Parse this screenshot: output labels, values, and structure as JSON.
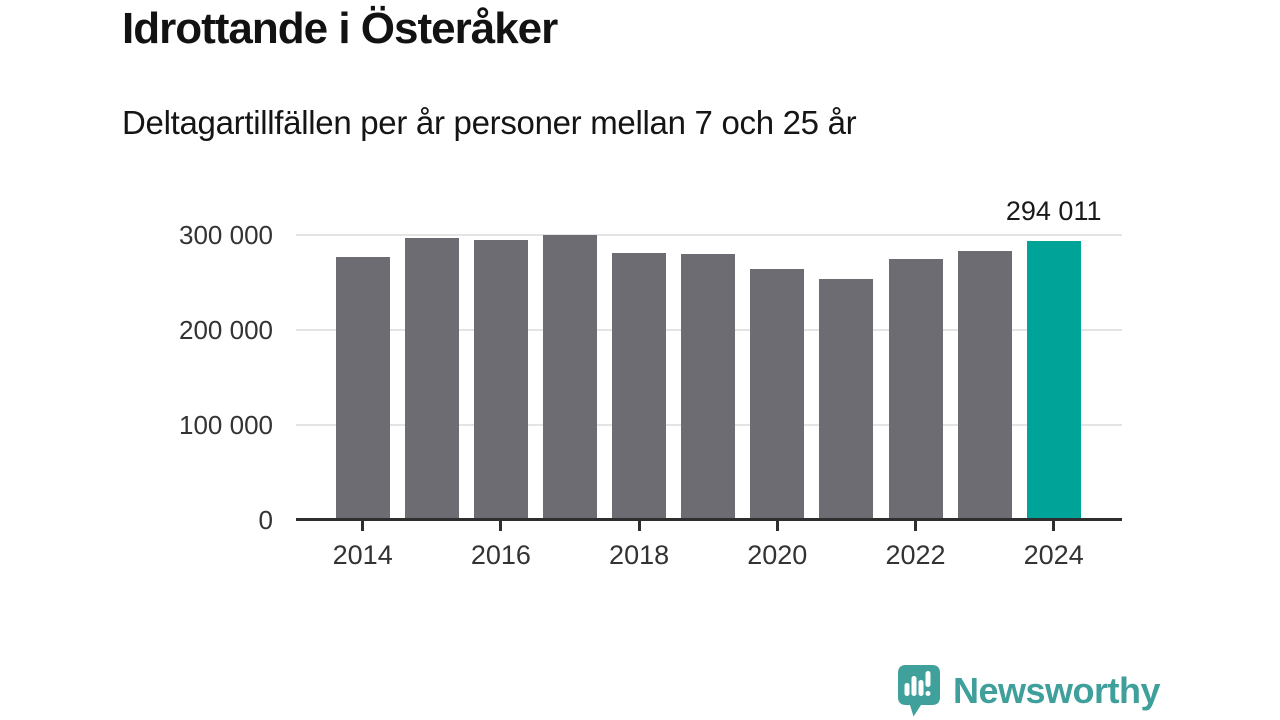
{
  "title": "Idrottande i Österåker",
  "subtitle": "Deltagartillfällen per år personer mellan 7 och 25 år",
  "chart_data": {
    "type": "bar",
    "categories": [
      "2014",
      "2015",
      "2016",
      "2017",
      "2018",
      "2019",
      "2020",
      "2021",
      "2022",
      "2023",
      "2024"
    ],
    "values": [
      277000,
      297000,
      295000,
      300500,
      281000,
      280000,
      264000,
      254000,
      275000,
      283000,
      294011
    ],
    "title": "Idrottande i Österåker",
    "subtitle": "Deltagartillfällen per år personer mellan 7 och 25 år",
    "xlabel": "",
    "ylabel": "",
    "ylim": [
      0,
      310000
    ],
    "yticks": [
      0,
      100000,
      200000,
      300000
    ],
    "ytick_labels": [
      "0",
      "100 000",
      "200 000",
      "300 000"
    ],
    "xtick_labels": [
      "2014",
      "2016",
      "2018",
      "2020",
      "2022",
      "2024"
    ],
    "grid": "horizontal",
    "legend": "none",
    "bar_color": "#6c6c72",
    "highlight_index": 10,
    "highlight_color": "#00a398",
    "highlight_label": "294 011"
  },
  "branding": {
    "name": "Newsworthy",
    "logo_icon": "speech-bubble-bar-chart-icon",
    "color": "#3f9f9b"
  }
}
